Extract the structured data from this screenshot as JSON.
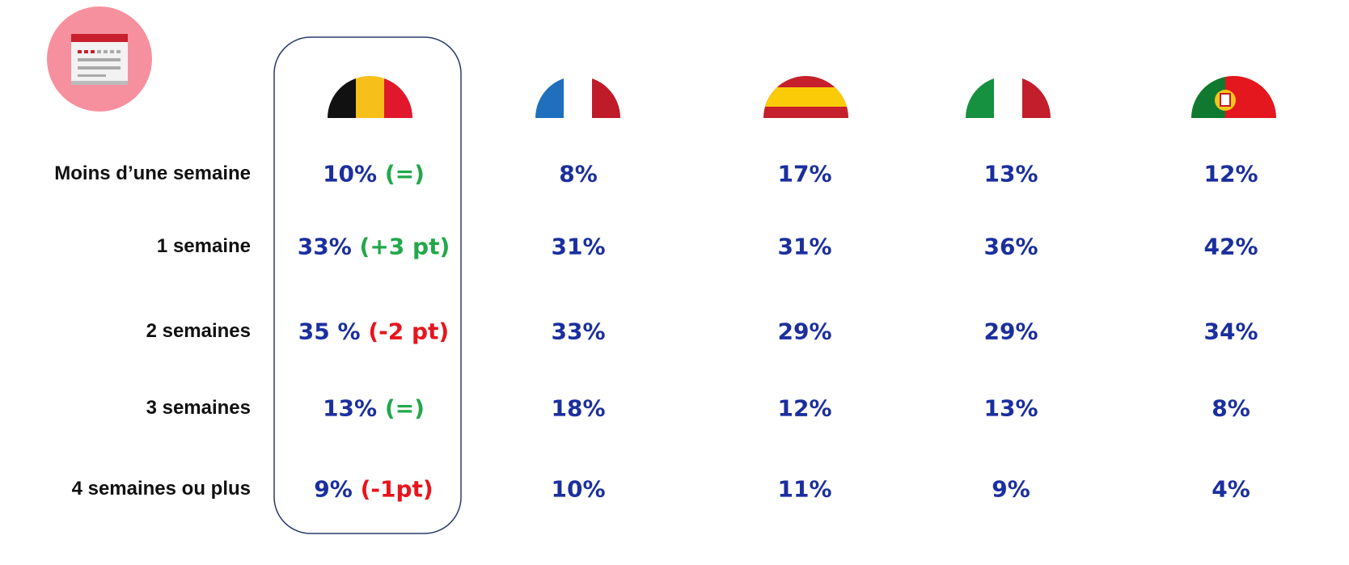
{
  "rows": [
    {
      "label": "Moins d’une semaine",
      "values": [
        "10%",
        "8%",
        "17%",
        "13%",
        "12%"
      ],
      "change": "(=)",
      "change_color": "#22a84a"
    },
    {
      "label": "1 semaine",
      "values": [
        "33%",
        "31%",
        "31%",
        "36%",
        "42%"
      ],
      "change": "(+3 pt)",
      "change_color": "#22a84a"
    },
    {
      "label": "2 semaines",
      "values": [
        "35 %",
        "33%",
        "29%",
        "29%",
        "34%"
      ],
      "change": "(-2 pt)",
      "change_color": "#e8141c"
    },
    {
      "label": "3 semaines",
      "values": [
        "13%",
        "18%",
        "12%",
        "13%",
        "8%"
      ],
      "change": "(=)",
      "change_color": "#22a84a"
    },
    {
      "label": "4 semaines ou plus",
      "values": [
        "9%",
        "10%",
        "11%",
        "9%",
        "4%"
      ],
      "change": "(-1pt)",
      "change_color": "#e8141c"
    }
  ]
}
